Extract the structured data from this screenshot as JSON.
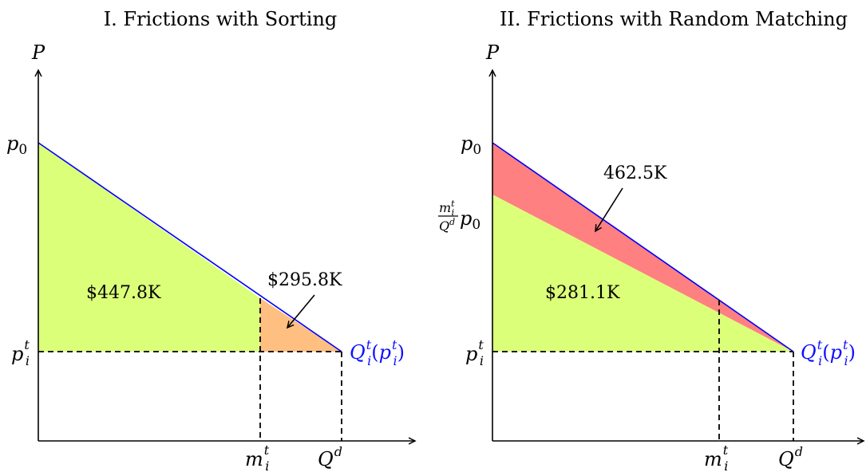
{
  "panels": [
    {
      "title": "I. Frictions with Sorting",
      "y_axis_label": "P",
      "p0_label": "p0",
      "pit_label": "p_i^t",
      "mit_label": "m_i^t",
      "qd_label": "Q^d",
      "curve_label": "Q_i^t(p_i^t)",
      "area_main_value": "$447.8K",
      "area_triangle_value": "$295.8K",
      "colors": {
        "main": "#dcff7a",
        "triangle": "#ffbf80",
        "curve": "#0000ff"
      }
    },
    {
      "title": "II. Frictions with Random Matching",
      "y_axis_label": "P",
      "p0_label": "p0",
      "mid_label": "m_i^t/Q^d p0",
      "pit_label": "p_i^t",
      "mit_label": "m_i^t",
      "qd_label": "Q^d",
      "curve_label": "Q_i^t(p_i^t)",
      "area_main_value": "$281.1K",
      "area_wedge_value": "462.5K",
      "colors": {
        "main": "#dcff7a",
        "wedge": "#ff8080",
        "curve": "#0000ff"
      }
    }
  ]
}
